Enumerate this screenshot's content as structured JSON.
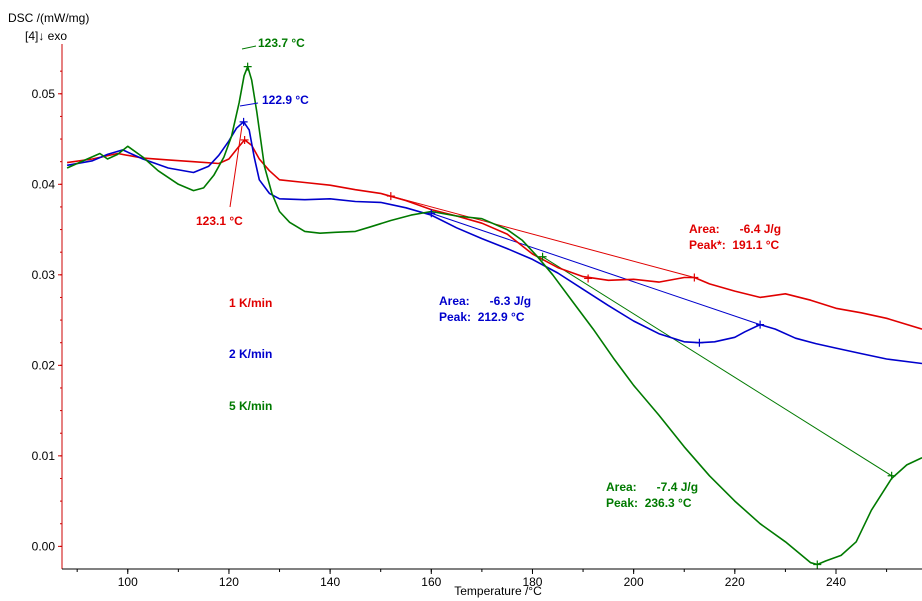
{
  "chart_data": {
    "type": "line",
    "ylabel": "DSC /(mW/mg)",
    "ylabel_extra": "[4]↓  exo",
    "xlabel": "Temperature /°C",
    "xlim": [
      87,
      257
    ],
    "ylim": [
      -0.0025,
      0.0555
    ],
    "x_ticks": [
      100,
      120,
      140,
      160,
      180,
      200,
      220,
      240
    ],
    "y_ticks": [
      0.0,
      0.01,
      0.02,
      0.03,
      0.04,
      0.05
    ],
    "y_tick_labels": [
      "0.00",
      "0.01",
      "0.02",
      "0.03",
      "0.04",
      "0.05"
    ],
    "colors": {
      "axis": "#cc0000",
      "red": "#e00000",
      "blue": "#0000cc",
      "green": "#007a00"
    },
    "series": [
      {
        "name": "1 K/min",
        "color": "#e00000",
        "x": [
          88,
          93,
          98,
          103,
          108,
          113,
          118,
          120,
          122,
          123.1,
          124.5,
          126,
          128,
          130,
          135,
          140,
          145,
          150,
          155,
          160,
          165,
          170,
          175,
          180,
          185,
          190,
          195,
          200,
          205,
          210,
          212,
          215,
          220,
          225,
          230,
          235,
          240,
          245,
          250,
          257
        ],
        "y": [
          0.0424,
          0.0428,
          0.0434,
          0.0429,
          0.0427,
          0.0425,
          0.0423,
          0.0428,
          0.0442,
          0.0449,
          0.0443,
          0.0428,
          0.0415,
          0.0405,
          0.0402,
          0.0399,
          0.0394,
          0.039,
          0.0382,
          0.0372,
          0.0365,
          0.0357,
          0.0345,
          0.0323,
          0.0308,
          0.0298,
          0.0294,
          0.0295,
          0.0292,
          0.0297,
          0.0297,
          0.029,
          0.0282,
          0.0275,
          0.0279,
          0.0272,
          0.0263,
          0.0258,
          0.0252,
          0.024
        ]
      },
      {
        "name": "2 K/min",
        "color": "#0000cc",
        "x": [
          88,
          93,
          96,
          99,
          103,
          108,
          113,
          116,
          118,
          120,
          121.5,
          122.9,
          124,
          125,
          126,
          128,
          130,
          135,
          140,
          145,
          150,
          155,
          160,
          165,
          170,
          175,
          180,
          185,
          190,
          195,
          200,
          205,
          210,
          213,
          216,
          220,
          222,
          225,
          228,
          232,
          236,
          240,
          245,
          250,
          257
        ],
        "y": [
          0.0421,
          0.0426,
          0.0433,
          0.0438,
          0.0428,
          0.0418,
          0.0413,
          0.042,
          0.0432,
          0.0448,
          0.0462,
          0.0469,
          0.046,
          0.043,
          0.0405,
          0.039,
          0.0384,
          0.0383,
          0.0384,
          0.0381,
          0.038,
          0.0374,
          0.0366,
          0.0352,
          0.034,
          0.0329,
          0.0317,
          0.0302,
          0.0284,
          0.0266,
          0.0249,
          0.0235,
          0.0226,
          0.0225,
          0.0226,
          0.0231,
          0.0237,
          0.0245,
          0.024,
          0.023,
          0.0224,
          0.0219,
          0.0213,
          0.0207,
          0.0202
        ]
      },
      {
        "name": "5 K/min",
        "color": "#007a00",
        "x": [
          88,
          92,
          94.5,
          96,
          98,
          100,
          103,
          106,
          110,
          113,
          115,
          117,
          119,
          120.5,
          122,
          123,
          123.7,
          124.5,
          125.5,
          127,
          128.5,
          130,
          132,
          135,
          138,
          141,
          145,
          148,
          152,
          156,
          160,
          165,
          170,
          175,
          178,
          181,
          184,
          188,
          192,
          196,
          200,
          205,
          210,
          215,
          220,
          225,
          230,
          235,
          236.3,
          238,
          241,
          244,
          247,
          251,
          254,
          257
        ],
        "y": [
          0.0418,
          0.0428,
          0.0434,
          0.0428,
          0.0433,
          0.0442,
          0.043,
          0.0415,
          0.04,
          0.0393,
          0.0396,
          0.041,
          0.043,
          0.0453,
          0.049,
          0.052,
          0.053,
          0.0515,
          0.048,
          0.042,
          0.039,
          0.037,
          0.0358,
          0.0348,
          0.0346,
          0.0347,
          0.0348,
          0.0353,
          0.036,
          0.0366,
          0.037,
          0.0365,
          0.0362,
          0.035,
          0.0338,
          0.032,
          0.03,
          0.027,
          0.024,
          0.0208,
          0.0178,
          0.0145,
          0.011,
          0.0078,
          0.005,
          0.0025,
          0.0005,
          -0.0018,
          -0.002,
          -0.0016,
          -0.001,
          0.0005,
          0.004,
          0.0075,
          0.009,
          0.0098
        ]
      }
    ],
    "baselines": [
      {
        "series": "1 K/min",
        "x": [
          152,
          212
        ],
        "y": [
          0.0387,
          0.0297
        ]
      },
      {
        "series": "2 K/min",
        "x": [
          160,
          225
        ],
        "y": [
          0.0368,
          0.0245
        ]
      },
      {
        "series": "5 K/min",
        "x": [
          182,
          251
        ],
        "y": [
          0.032,
          0.0078
        ]
      }
    ],
    "extra_markers": [
      {
        "color": "#e00000",
        "x": 191,
        "y": 0.0296
      },
      {
        "color": "#0000cc",
        "x": 213,
        "y": 0.0225
      }
    ],
    "peaks": [
      {
        "label": "123.1 °C",
        "color": "#e00000",
        "x": 123.1,
        "y": 0.0449
      },
      {
        "label": "122.9 °C",
        "color": "#0000cc",
        "x": 122.9,
        "y": 0.0469
      },
      {
        "label": "123.7 °C",
        "color": "#007a00",
        "x": 123.7,
        "y": 0.053
      },
      {
        "color": "#007a00",
        "x": 236.3,
        "y": -0.002
      }
    ],
    "legend": [
      {
        "label": "1 K/min",
        "color": "#e00000"
      },
      {
        "label": "2 K/min",
        "color": "#0000cc"
      },
      {
        "label": "5 K/min",
        "color": "#007a00"
      }
    ],
    "annotations": [
      {
        "color": "#e00000",
        "line1": "Area:      -6.4 J/g",
        "line2": "Peak*:  191.1 °C"
      },
      {
        "color": "#0000cc",
        "line1": "Area:      -6.3 J/g",
        "line2": "Peak:  212.9 °C"
      },
      {
        "color": "#007a00",
        "line1": "Area:      -7.4 J/g",
        "line2": "Peak:  236.3 °C"
      }
    ]
  }
}
